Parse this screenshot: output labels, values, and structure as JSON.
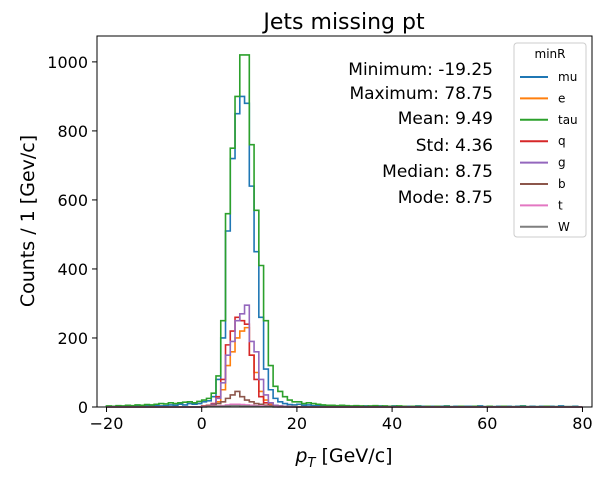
{
  "chart_data": {
    "type": "step-histogram",
    "title": "Jets missing pt",
    "xlabel_main": "p",
    "xlabel_sub": "T",
    "xlabel_rest": " [GeV/c]",
    "ylabel": "Counts / 1 [Gev/c]",
    "xlim": [
      -22,
      82
    ],
    "ylim": [
      0,
      1075
    ],
    "x_ticks": [
      -20,
      0,
      20,
      40,
      60,
      80
    ],
    "y_ticks": [
      0,
      200,
      400,
      600,
      800,
      1000
    ],
    "grid": false,
    "legend_title": "minR",
    "legend_position": "top-right",
    "stats": [
      "Minimum: -19.25",
      "Maximum: 78.75",
      "Mean: 9.49",
      "Std: 4.36",
      "Median: 8.75",
      "Mode: 8.75"
    ],
    "bins_x": [
      -20,
      -19,
      -18,
      -17,
      -16,
      -15,
      -14,
      -13,
      -12,
      -11,
      -10,
      -9,
      -8,
      -7,
      -6,
      -5,
      -4,
      -3,
      -2,
      -1,
      0,
      1,
      2,
      3,
      4,
      5,
      6,
      7,
      8,
      9,
      10,
      11,
      12,
      13,
      14,
      15,
      16,
      17,
      18,
      19,
      20,
      21,
      22,
      23,
      24,
      25,
      26,
      27,
      28,
      29,
      30,
      31,
      32,
      33,
      34,
      35,
      36,
      37,
      38,
      39,
      40,
      41,
      42,
      43,
      44,
      45,
      46,
      47,
      48,
      49,
      50,
      51,
      52,
      53,
      54,
      55,
      56,
      57,
      58,
      59,
      60,
      61,
      62,
      63,
      64,
      65,
      66,
      67,
      68,
      69,
      70,
      71,
      72,
      73,
      74,
      75,
      76,
      77,
      78,
      79
    ],
    "series": [
      {
        "name": "mu",
        "color": "#1f77b4",
        "values": [
          2,
          0,
          2,
          1,
          3,
          1,
          2,
          2,
          3,
          2,
          5,
          3,
          4,
          6,
          5,
          8,
          6,
          10,
          8,
          10,
          15,
          18,
          30,
          80,
          200,
          510,
          720,
          850,
          900,
          880,
          640,
          450,
          260,
          110,
          50,
          25,
          15,
          10,
          7,
          6,
          8,
          5,
          6,
          4,
          5,
          3,
          4,
          3,
          2,
          4,
          3,
          2,
          3,
          1,
          3,
          2,
          2,
          3,
          1,
          2,
          3,
          1,
          2,
          2,
          1,
          3,
          2,
          1,
          2,
          1,
          2,
          3,
          1,
          2,
          1,
          2,
          2,
          1,
          3,
          1,
          2,
          1,
          2,
          1,
          2,
          1,
          2,
          3,
          1,
          2,
          1,
          2,
          1,
          2,
          1,
          3,
          1,
          1,
          2,
          0
        ]
      },
      {
        "name": "e",
        "color": "#ff7f0e",
        "values": [
          0,
          0,
          0,
          0,
          0,
          0,
          0,
          0,
          0,
          0,
          0,
          0,
          0,
          0,
          0,
          0,
          0,
          0,
          0,
          0,
          2,
          3,
          5,
          15,
          50,
          120,
          160,
          200,
          220,
          230,
          150,
          100,
          45,
          20,
          10,
          5,
          3,
          2,
          1,
          1,
          1,
          0,
          0,
          0,
          0,
          0,
          0,
          0,
          0,
          0,
          0,
          0,
          0,
          0,
          0,
          0,
          0,
          0,
          0,
          0,
          0,
          0,
          0,
          0,
          0,
          0,
          0,
          0,
          0,
          0,
          0,
          0,
          0,
          0,
          0,
          0,
          0,
          0,
          0,
          0,
          0,
          0,
          0,
          0,
          0,
          0,
          0,
          0,
          0,
          0,
          0,
          0,
          0,
          0,
          0,
          0,
          0,
          0,
          0,
          0
        ]
      },
      {
        "name": "tau",
        "color": "#2ca02c",
        "values": [
          3,
          2,
          4,
          3,
          5,
          4,
          6,
          5,
          7,
          6,
          8,
          10,
          9,
          12,
          10,
          12,
          14,
          15,
          12,
          16,
          20,
          25,
          40,
          90,
          250,
          560,
          750,
          900,
          1020,
          1020,
          760,
          570,
          410,
          250,
          120,
          60,
          45,
          30,
          20,
          15,
          15,
          10,
          12,
          10,
          8,
          6,
          5,
          5,
          4,
          5,
          4,
          3,
          4,
          3,
          2,
          3,
          4,
          2,
          3,
          2,
          2,
          3,
          2,
          1,
          2,
          2,
          1,
          2,
          1,
          2,
          1,
          2,
          1,
          1,
          2,
          1,
          1,
          2,
          1,
          1,
          2,
          1,
          1,
          2,
          1,
          1,
          1,
          2,
          1,
          1,
          1,
          1,
          2,
          1,
          1,
          1,
          1,
          1,
          1,
          0
        ]
      },
      {
        "name": "q",
        "color": "#d62728",
        "values": [
          0,
          0,
          0,
          0,
          0,
          0,
          0,
          0,
          0,
          0,
          0,
          0,
          0,
          0,
          0,
          0,
          0,
          0,
          0,
          0,
          3,
          5,
          10,
          30,
          80,
          180,
          220,
          260,
          250,
          240,
          150,
          80,
          30,
          12,
          5,
          3,
          2,
          1,
          1,
          0,
          0,
          0,
          0,
          0,
          0,
          0,
          0,
          0,
          0,
          0,
          0,
          0,
          0,
          0,
          0,
          0,
          0,
          0,
          0,
          0,
          0,
          0,
          0,
          0,
          0,
          0,
          0,
          0,
          0,
          0,
          0,
          0,
          0,
          0,
          0,
          0,
          0,
          0,
          0,
          0,
          0,
          0,
          0,
          0,
          0,
          0,
          0,
          0,
          0,
          0,
          0,
          0,
          0,
          0,
          0,
          0,
          0,
          0,
          0,
          0
        ]
      },
      {
        "name": "g",
        "color": "#9467bd",
        "values": [
          0,
          0,
          0,
          0,
          0,
          0,
          0,
          0,
          0,
          0,
          0,
          0,
          0,
          0,
          0,
          0,
          0,
          0,
          0,
          0,
          2,
          4,
          8,
          25,
          70,
          150,
          190,
          250,
          270,
          295,
          190,
          160,
          80,
          35,
          12,
          5,
          3,
          2,
          1,
          0,
          0,
          0,
          0,
          0,
          0,
          0,
          0,
          0,
          0,
          0,
          0,
          0,
          0,
          0,
          0,
          0,
          0,
          0,
          0,
          0,
          0,
          0,
          0,
          0,
          0,
          0,
          0,
          0,
          0,
          0,
          0,
          0,
          0,
          0,
          0,
          0,
          0,
          0,
          0,
          0,
          0,
          0,
          0,
          0,
          0,
          0,
          0,
          0,
          0,
          0,
          0,
          0,
          0,
          0,
          0,
          0,
          0,
          0,
          0,
          0
        ]
      },
      {
        "name": "b",
        "color": "#8c564b",
        "values": [
          0,
          0,
          0,
          0,
          0,
          0,
          0,
          0,
          0,
          0,
          0,
          0,
          0,
          0,
          0,
          0,
          0,
          0,
          0,
          0,
          2,
          3,
          5,
          10,
          15,
          25,
          35,
          45,
          30,
          20,
          15,
          10,
          8,
          5,
          3,
          2,
          1,
          1,
          0,
          0,
          0,
          0,
          0,
          0,
          0,
          0,
          0,
          0,
          0,
          0,
          0,
          0,
          0,
          0,
          0,
          0,
          0,
          0,
          0,
          0,
          0,
          0,
          0,
          0,
          0,
          0,
          0,
          0,
          0,
          0,
          0,
          0,
          0,
          0,
          0,
          0,
          0,
          0,
          0,
          0,
          0,
          0,
          0,
          0,
          0,
          0,
          0,
          0,
          0,
          0,
          0,
          0,
          0,
          0,
          0,
          0,
          0,
          0,
          0,
          0
        ]
      },
      {
        "name": "t",
        "color": "#e377c2",
        "values": [
          0,
          0,
          0,
          0,
          0,
          0,
          0,
          0,
          0,
          0,
          0,
          0,
          0,
          0,
          0,
          0,
          0,
          0,
          0,
          0,
          1,
          1,
          2,
          3,
          4,
          6,
          8,
          8,
          7,
          6,
          5,
          4,
          3,
          2,
          1,
          1,
          0,
          0,
          0,
          0,
          0,
          0,
          0,
          0,
          0,
          0,
          0,
          0,
          0,
          0,
          0,
          0,
          0,
          0,
          0,
          0,
          0,
          0,
          0,
          0,
          0,
          0,
          0,
          0,
          0,
          0,
          0,
          0,
          0,
          0,
          0,
          0,
          0,
          0,
          0,
          0,
          0,
          0,
          0,
          0,
          0,
          0,
          0,
          0,
          0,
          0,
          0,
          0,
          0,
          0,
          0,
          0,
          0,
          0,
          0,
          0,
          0,
          0,
          0,
          0
        ]
      },
      {
        "name": "W",
        "color": "#7f7f7f",
        "values": [
          0,
          0,
          0,
          0,
          0,
          0,
          0,
          0,
          0,
          0,
          0,
          0,
          0,
          0,
          0,
          0,
          0,
          0,
          0,
          0,
          0,
          1,
          1,
          2,
          2,
          3,
          4,
          4,
          3,
          3,
          2,
          2,
          1,
          1,
          1,
          0,
          0,
          0,
          0,
          0,
          0,
          0,
          0,
          0,
          0,
          0,
          0,
          0,
          0,
          0,
          0,
          0,
          0,
          0,
          0,
          0,
          0,
          0,
          0,
          0,
          0,
          0,
          0,
          0,
          0,
          0,
          0,
          0,
          0,
          0,
          0,
          0,
          0,
          0,
          0,
          0,
          0,
          0,
          0,
          0,
          0,
          0,
          0,
          0,
          0,
          0,
          0,
          0,
          0,
          0,
          0,
          0,
          0,
          0,
          0,
          0,
          0,
          0,
          0,
          0
        ]
      }
    ]
  }
}
